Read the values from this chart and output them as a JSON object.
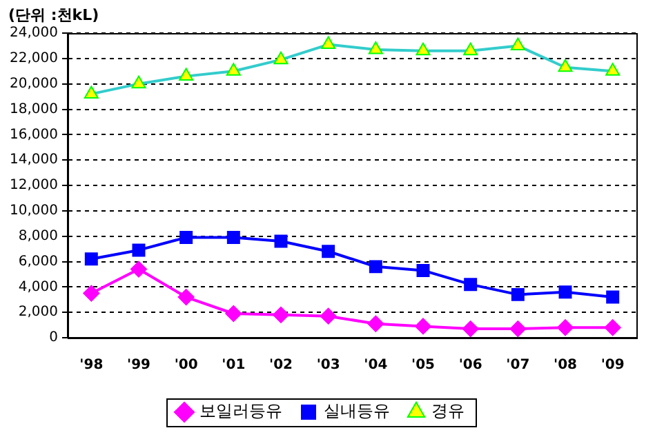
{
  "chart_data": {
    "type": "line",
    "ylabel": "(단위 :천kL)",
    "categories": [
      "'98",
      "'99",
      "'00",
      "'01",
      "'02",
      "'03",
      "'04",
      "'05",
      "'06",
      "'07",
      "'08",
      "'09"
    ],
    "series": [
      {
        "name": "보일러등유",
        "color": "#ff00ff",
        "marker": "diamond",
        "values": [
          3500,
          5400,
          3200,
          1900,
          1800,
          1700,
          1100,
          900,
          700,
          700,
          800,
          800
        ]
      },
      {
        "name": "실내등유",
        "color": "#0000ff",
        "marker": "square",
        "values": [
          6200,
          6900,
          7900,
          7900,
          7600,
          6800,
          5600,
          5300,
          4200,
          3400,
          3600,
          3200
        ]
      },
      {
        "name": "경유",
        "color": "#33cccc",
        "marker": "triangle",
        "values": [
          19200,
          20000,
          20600,
          21000,
          21900,
          23100,
          22700,
          22600,
          22600,
          23000,
          21300,
          21000
        ]
      }
    ],
    "ylim": [
      0,
      24000
    ],
    "yticks": [
      {
        "value": 0,
        "label": "0"
      },
      {
        "value": 2000,
        "label": "2,000"
      },
      {
        "value": 4000,
        "label": "4,000"
      },
      {
        "value": 6000,
        "label": "6,000"
      },
      {
        "value": 8000,
        "label": "8,000"
      },
      {
        "value": 10000,
        "label": "10,000"
      },
      {
        "value": 12000,
        "label": "12,000"
      },
      {
        "value": 14000,
        "label": "14,000"
      },
      {
        "value": 16000,
        "label": "16,000"
      },
      {
        "value": 18000,
        "label": "18,000"
      },
      {
        "value": 20000,
        "label": "20,000"
      },
      {
        "value": 22000,
        "label": "22,000"
      },
      {
        "value": 24000,
        "label": "24,000"
      }
    ],
    "grid": "y",
    "legend": "bottom",
    "line_style": "solid"
  }
}
